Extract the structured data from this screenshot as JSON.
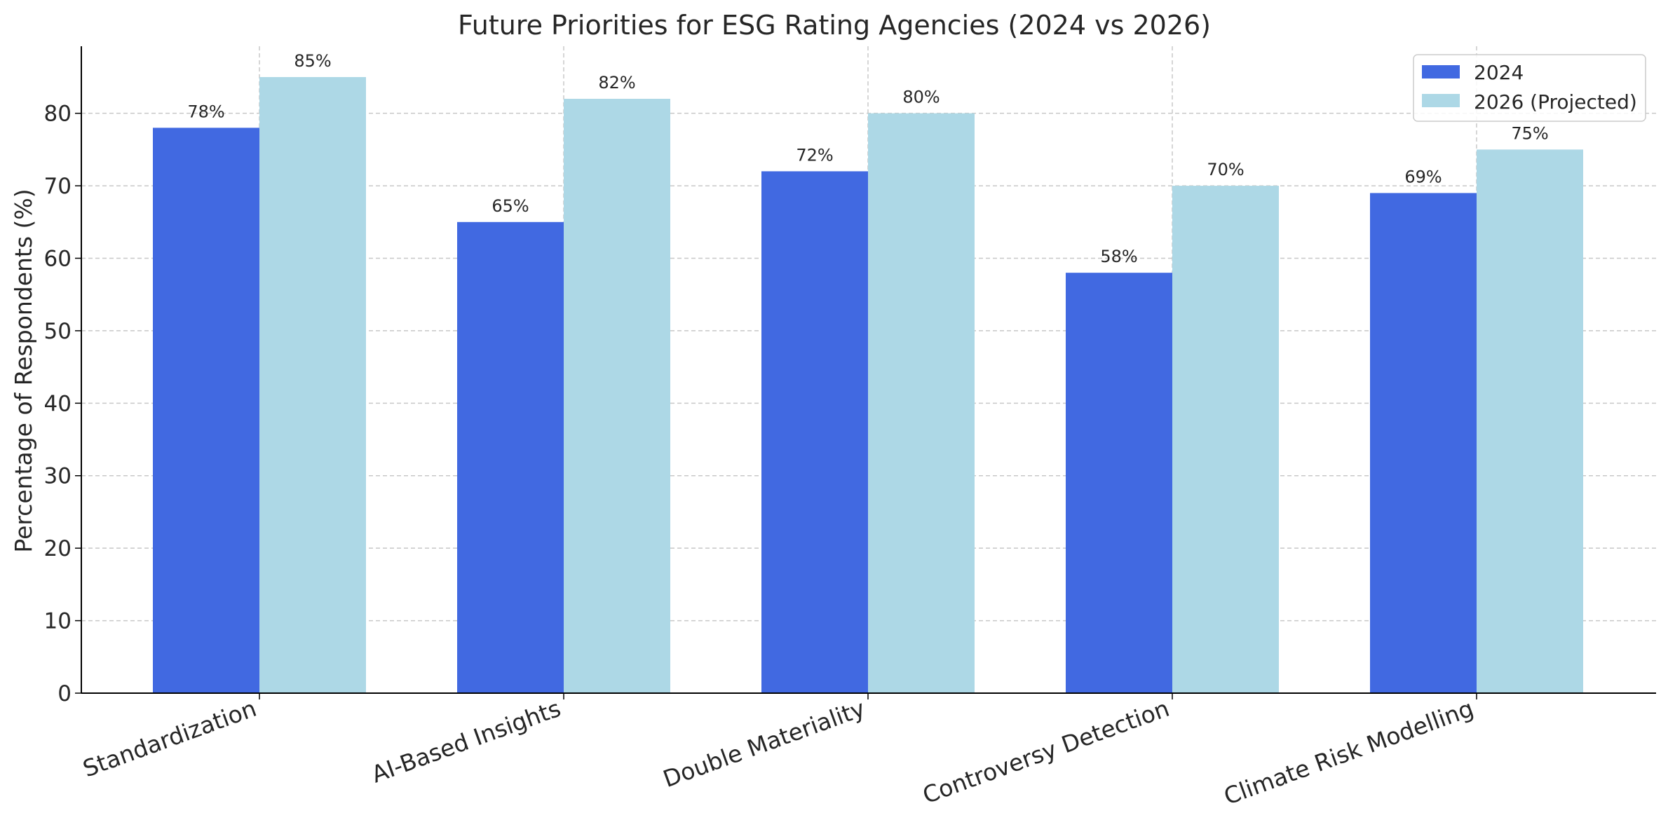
{
  "chart_data": {
    "type": "bar",
    "title": "Future Priorities for ESG Rating Agencies (2024 vs 2026)",
    "xlabel": "",
    "ylabel": "Percentage of Respondents (%)",
    "categories": [
      "Standardization",
      "AI-Based Insights",
      "Double Materiality",
      "Controversy Detection",
      "Climate Risk Modelling"
    ],
    "series": [
      {
        "name": "2024",
        "values": [
          78,
          65,
          72,
          58,
          69
        ],
        "color": "#4169e1",
        "labels": [
          "78%",
          "65%",
          "72%",
          "58%",
          "69%"
        ]
      },
      {
        "name": "2026 (Projected)",
        "values": [
          85,
          82,
          80,
          70,
          75
        ],
        "color": "#add8e6",
        "labels": [
          "85%",
          "82%",
          "80%",
          "70%",
          "75%"
        ]
      }
    ],
    "ylim": [
      0,
      89.25
    ],
    "yticks": [
      0,
      10,
      20,
      30,
      40,
      50,
      60,
      70,
      80
    ],
    "grid": true,
    "legend": "top-right"
  }
}
